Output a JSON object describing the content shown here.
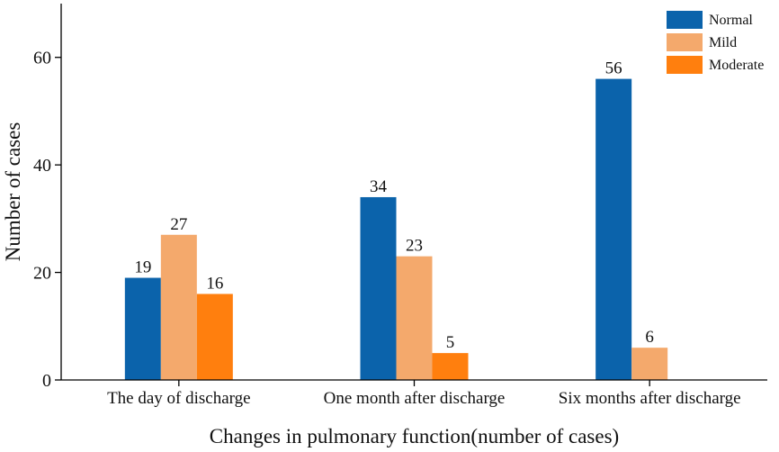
{
  "chart_data": {
    "type": "bar",
    "title": "",
    "xlabel": "Changes in pulmonary function(number of cases)",
    "ylabel": "Number of cases",
    "ylim": [
      0,
      70
    ],
    "yticks": [
      0,
      20,
      40,
      60
    ],
    "categories": [
      "The day of discharge",
      "One month after discharge",
      "Six months after discharge"
    ],
    "series": [
      {
        "name": "Normal",
        "color": "#0b63ab",
        "values": [
          19,
          34,
          56
        ]
      },
      {
        "name": "Mild",
        "color": "#f4a96c",
        "values": [
          27,
          23,
          6
        ]
      },
      {
        "name": "Moderate",
        "color": "#ff7f0e",
        "values": [
          16,
          5,
          null
        ]
      }
    ],
    "legend_position": "top-right",
    "grid": false
  }
}
